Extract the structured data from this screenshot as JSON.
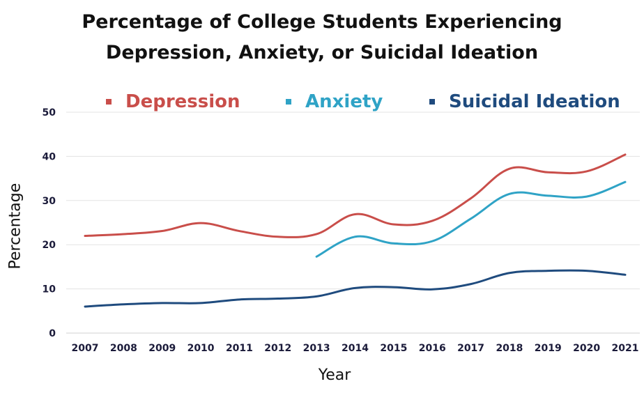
{
  "chart_data": {
    "type": "line",
    "title_line1": "Percentage of College Students Experiencing",
    "title_line2": "Depression, Anxiety, or Suicidal Ideation",
    "xlabel": "Year",
    "ylabel": "Percentage",
    "ylim": [
      0,
      50
    ],
    "yticks": [
      0,
      10,
      20,
      30,
      40,
      50
    ],
    "grid": "horizontal",
    "legend_position": "top",
    "categories": [
      "2007",
      "2008",
      "2009",
      "2010",
      "2011",
      "2012",
      "2013",
      "2014",
      "2015",
      "2016",
      "2017",
      "2018",
      "2019",
      "2020",
      "2021"
    ],
    "series": [
      {
        "name": "Depression",
        "color": "#c94e4a",
        "values": [
          22.0,
          22.4,
          23.1,
          24.9,
          23.1,
          21.8,
          22.4,
          26.9,
          24.6,
          25.4,
          30.5,
          37.2,
          36.4,
          36.6,
          40.4
        ]
      },
      {
        "name": "Anxiety",
        "color": "#2fa3c6",
        "values": [
          null,
          null,
          null,
          null,
          null,
          null,
          17.3,
          21.8,
          20.3,
          20.8,
          25.9,
          31.5,
          31.1,
          30.9,
          34.2
        ]
      },
      {
        "name": "Suicidal Ideation",
        "color": "#1f4b7e",
        "values": [
          6.0,
          6.5,
          6.8,
          6.8,
          7.6,
          7.8,
          8.3,
          10.2,
          10.4,
          9.9,
          11.1,
          13.6,
          14.1,
          14.1,
          13.2
        ]
      }
    ]
  }
}
